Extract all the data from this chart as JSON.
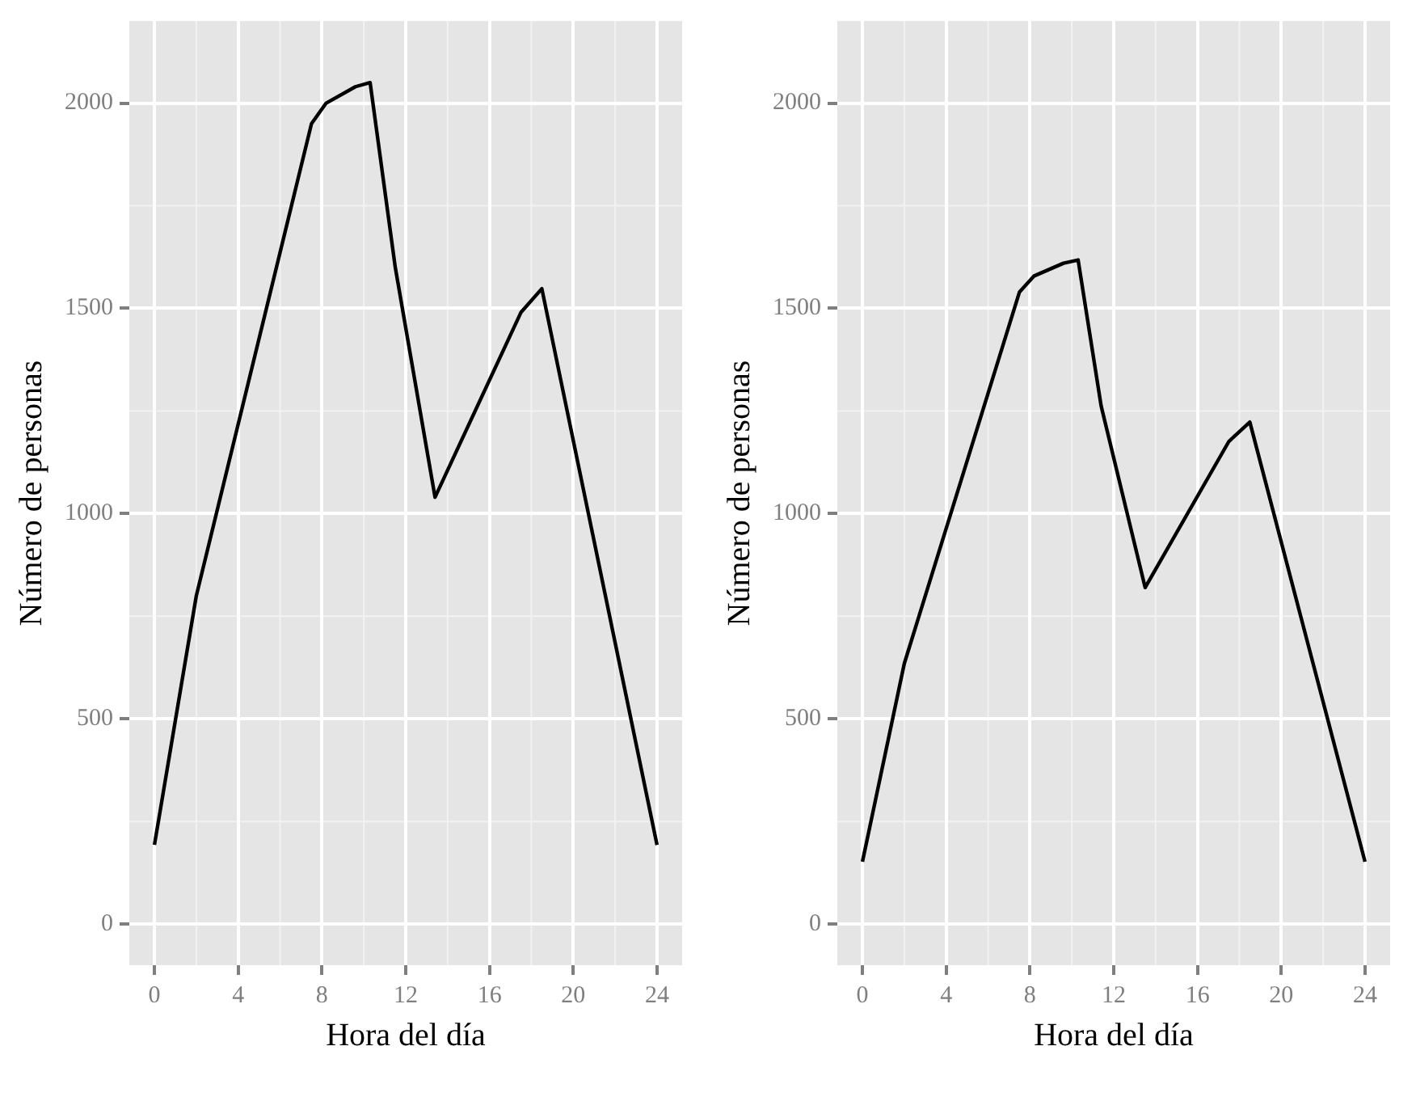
{
  "chart_data": [
    {
      "type": "line",
      "xlabel": "Hora del día",
      "ylabel": "Número de personas",
      "x": [
        0,
        2,
        7.5,
        8.2,
        9.6,
        10.3,
        11.5,
        13.4,
        17.5,
        18.5,
        24
      ],
      "series": [
        {
          "color": "#000000",
          "values": [
            193,
            800,
            1950,
            2000,
            2040,
            2050,
            1600,
            1040,
            1490,
            1548,
            193
          ]
        }
      ],
      "xlim": [
        -1.2,
        25.2
      ],
      "xticks": [
        0,
        4,
        8,
        12,
        16,
        20,
        24
      ],
      "ylim": [
        -100,
        2200
      ],
      "yticks": [
        0,
        500,
        1000,
        1500,
        2000
      ],
      "grid": true,
      "legend": false,
      "marker": "none",
      "line_style": "solid"
    },
    {
      "type": "line",
      "xlabel": "Hora del día",
      "ylabel": "Número de personas",
      "x": [
        0,
        2,
        7.5,
        8.2,
        9.6,
        10.3,
        11.4,
        13.5,
        17.5,
        18.5,
        24
      ],
      "series": [
        {
          "color": "#000000",
          "values": [
            152,
            635,
            1540,
            1579,
            1610,
            1618,
            1262,
            820,
            1176,
            1223,
            152
          ]
        }
      ],
      "xlim": [
        -1.2,
        25.2
      ],
      "xticks": [
        0,
        4,
        8,
        12,
        16,
        20,
        24
      ],
      "ylim": [
        -100,
        2200
      ],
      "yticks": [
        0,
        500,
        1000,
        1500,
        2000
      ],
      "grid": true,
      "legend": false,
      "marker": "none",
      "line_style": "solid"
    }
  ]
}
